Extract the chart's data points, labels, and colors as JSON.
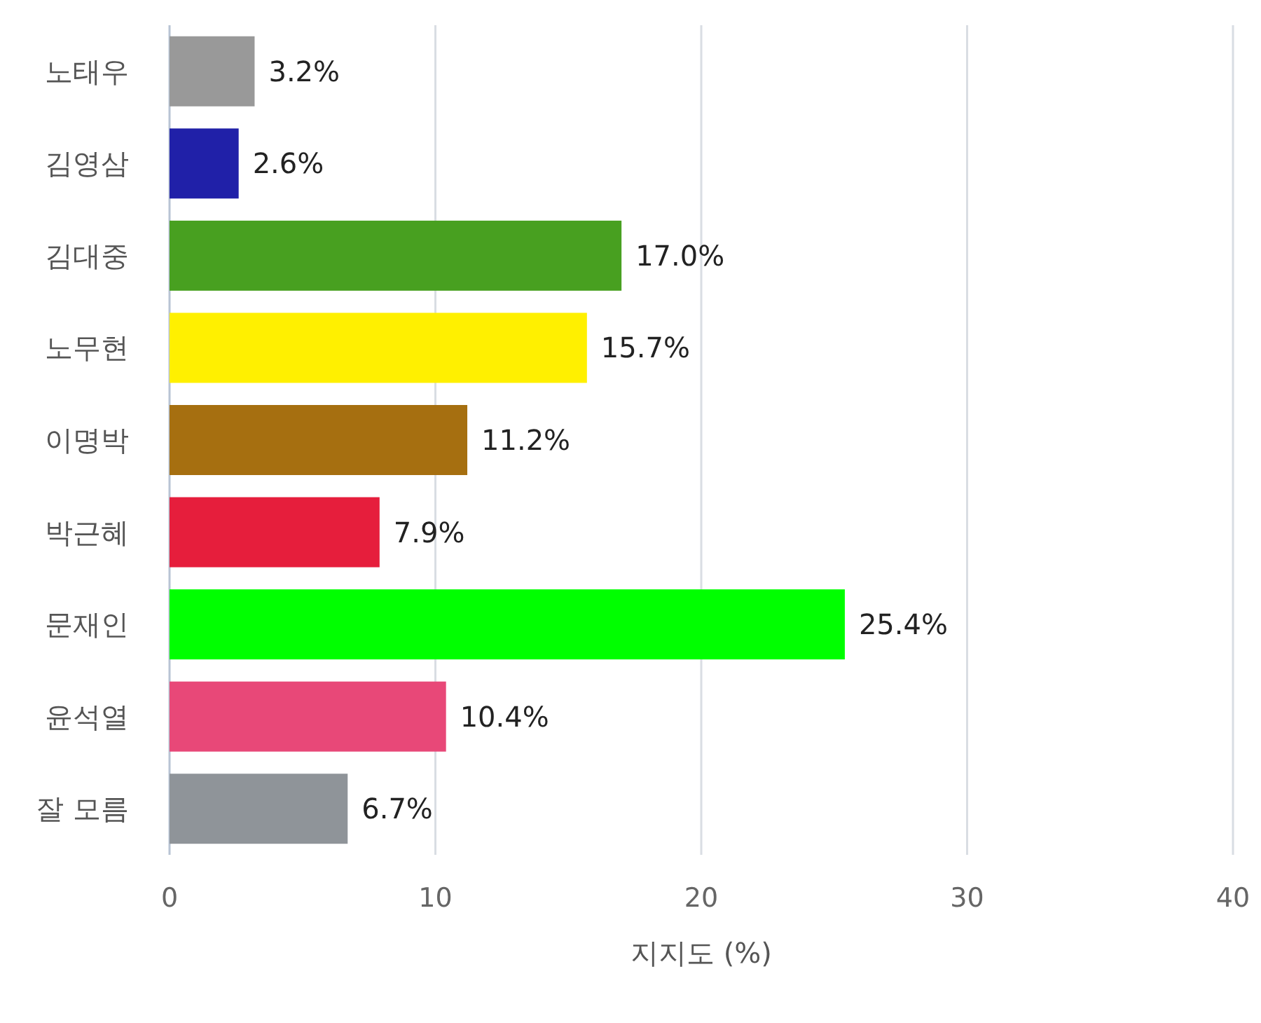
{
  "chart_data": {
    "type": "bar",
    "orientation": "horizontal",
    "xlabel": "지지도 (%)",
    "categories": [
      "노태우",
      "김영삼",
      "김대중",
      "노무현",
      "이명박",
      "박근혜",
      "문재인",
      "윤석열",
      "잘 모름"
    ],
    "values": [
      3.2,
      2.6,
      17.0,
      15.7,
      11.2,
      7.9,
      25.4,
      10.4,
      6.7
    ],
    "value_labels": [
      "3.2%",
      "2.6%",
      "17.0%",
      "15.7%",
      "11.2%",
      "7.9%",
      "25.4%",
      "10.4%",
      "6.7%"
    ],
    "colors": [
      "#999999",
      "#2020a8",
      "#48a020",
      "#fff000",
      "#a66f10",
      "#e61e3c",
      "#00ff00",
      "#e84878",
      "#8f9499"
    ],
    "xlim": [
      0,
      40
    ],
    "xticks": [
      0,
      10,
      20,
      30,
      40
    ],
    "grid": "x"
  }
}
